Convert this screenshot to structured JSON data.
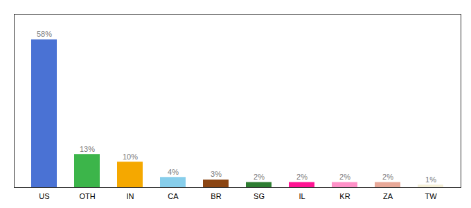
{
  "chart_data": {
    "type": "bar",
    "categories": [
      "US",
      "OTH",
      "IN",
      "CA",
      "BR",
      "SG",
      "IL",
      "KR",
      "ZA",
      "TW"
    ],
    "values": [
      58,
      13,
      10,
      4,
      3,
      2,
      2,
      2,
      2,
      1
    ],
    "value_labels": [
      "58%",
      "13%",
      "10%",
      "4%",
      "3%",
      "2%",
      "2%",
      "2%",
      "2%",
      "1%"
    ],
    "colors": [
      "#4a72d4",
      "#3cb54a",
      "#f5a800",
      "#87ceeb",
      "#8b4513",
      "#2e7d32",
      "#ff1493",
      "#ff91c8",
      "#e8a898",
      "#f5f0d8"
    ],
    "data_labels": true,
    "ylim": [
      0,
      68
    ],
    "grid": false,
    "tick_labels": "x"
  }
}
